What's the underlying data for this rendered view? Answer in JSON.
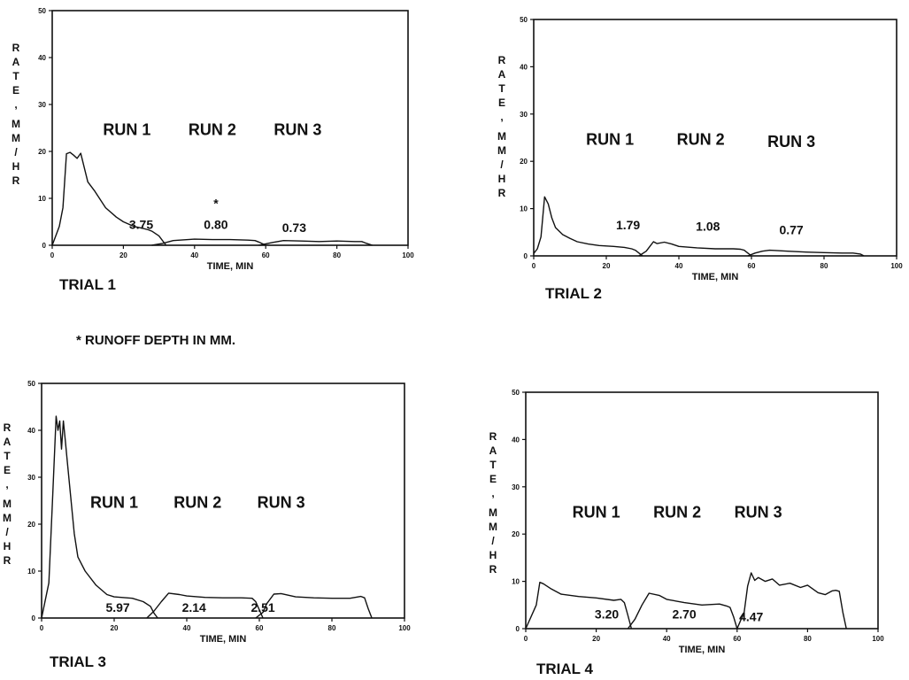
{
  "footnote": "* RUNOFF DEPTH IN MM.",
  "chart_data": [
    {
      "type": "line",
      "trial_label": "TRIAL 1",
      "xlabel": "TIME, MIN",
      "ylabel": "RATE, MM/HR",
      "ylabel_chars": [
        "R",
        "A",
        "T",
        "E",
        ",",
        "M",
        "M",
        "/",
        "H",
        "R"
      ],
      "xlim": [
        0,
        100
      ],
      "ylim": [
        0,
        50
      ],
      "xticks": [
        0,
        20,
        40,
        60,
        80,
        100
      ],
      "yticks": [
        0,
        10,
        20,
        30,
        40,
        50
      ],
      "run_labels": [
        {
          "text": "RUN 1",
          "x": 21,
          "y": 23.5
        },
        {
          "text": "RUN 2",
          "x": 45,
          "y": 23.5
        },
        {
          "text": "RUN 3",
          "x": 69,
          "y": 23.5
        }
      ],
      "depth_labels": [
        {
          "text": "3.75",
          "x": 25,
          "y": 3.5
        },
        {
          "text": "0.80",
          "x": 46,
          "y": 3.5
        },
        {
          "text": "0.73",
          "x": 68,
          "y": 2.8
        }
      ],
      "asterisk": {
        "text": "*",
        "x": 46,
        "y": 8
      },
      "series": [
        {
          "name": "Run 1",
          "x": [
            0,
            2,
            3,
            4,
            5,
            6,
            7,
            8,
            10,
            12,
            15,
            18,
            20,
            23,
            25,
            27,
            28,
            30,
            32
          ],
          "y": [
            0,
            4,
            8,
            19.5,
            19.8,
            19.2,
            18.5,
            19.6,
            13.5,
            11.5,
            8,
            6,
            5,
            4,
            3.7,
            3.3,
            3,
            2,
            0
          ]
        },
        {
          "name": "Run 2",
          "x": [
            28,
            31,
            34,
            40,
            45,
            50,
            55,
            57,
            58,
            60
          ],
          "y": [
            0,
            0.4,
            1,
            1.3,
            1.2,
            1.2,
            1.1,
            1.0,
            0.7,
            0
          ]
        },
        {
          "name": "Run 3",
          "x": [
            58,
            60,
            62,
            65,
            70,
            75,
            80,
            85,
            87,
            88,
            90
          ],
          "y": [
            0,
            0.3,
            0.6,
            1.0,
            0.9,
            0.8,
            0.9,
            0.8,
            0.8,
            0.5,
            0
          ]
        }
      ]
    },
    {
      "type": "line",
      "trial_label": "TRIAL 2",
      "xlabel": "TIME, MIN",
      "ylabel": "RATE, MM/HR",
      "ylabel_chars": [
        "R",
        "A",
        "T",
        "E",
        ",",
        "M",
        "M",
        "/",
        "H",
        "R"
      ],
      "xlim": [
        0,
        100
      ],
      "ylim": [
        0,
        50
      ],
      "xticks": [
        0,
        20,
        40,
        60,
        80,
        100
      ],
      "yticks": [
        0,
        10,
        20,
        30,
        40,
        50
      ],
      "run_labels": [
        {
          "text": "RUN 1",
          "x": 21,
          "y": 23.5
        },
        {
          "text": "RUN 2",
          "x": 46,
          "y": 23.5
        },
        {
          "text": "RUN 3",
          "x": 71,
          "y": 23
        }
      ],
      "depth_labels": [
        {
          "text": "1.79",
          "x": 26,
          "y": 5.6
        },
        {
          "text": "1.08",
          "x": 48,
          "y": 5.3
        },
        {
          "text": "0.77",
          "x": 71,
          "y": 4.6
        }
      ],
      "series": [
        {
          "name": "Run 1",
          "x": [
            0,
            1,
            2,
            3,
            4,
            5,
            6,
            8,
            10,
            12,
            15,
            18,
            20,
            22,
            25,
            27,
            28,
            29,
            30
          ],
          "y": [
            0.5,
            1.5,
            4,
            12.5,
            11,
            8,
            6,
            4.5,
            3.7,
            3,
            2.5,
            2.2,
            2.1,
            2.0,
            1.8,
            1.5,
            1.2,
            0.6,
            0
          ]
        },
        {
          "name": "Run 2",
          "x": [
            29,
            31,
            32,
            33,
            34,
            36,
            38,
            40,
            45,
            50,
            55,
            57,
            58,
            59,
            60
          ],
          "y": [
            0,
            1.0,
            2.0,
            3.0,
            2.6,
            2.9,
            2.5,
            2.0,
            1.7,
            1.5,
            1.5,
            1.4,
            1.2,
            0.6,
            0
          ]
        },
        {
          "name": "Run 3",
          "x": [
            59,
            61,
            63,
            65,
            70,
            75,
            80,
            85,
            88,
            90,
            91
          ],
          "y": [
            0,
            0.6,
            1.0,
            1.2,
            1.0,
            0.8,
            0.7,
            0.6,
            0.6,
            0.4,
            0
          ]
        }
      ]
    },
    {
      "type": "line",
      "trial_label": "TRIAL 3",
      "xlabel": "TIME, MIN",
      "ylabel": "RATE, MM/HR",
      "ylabel_chars": [
        "R",
        "A",
        "T",
        "E",
        ",",
        "M",
        "M",
        "/",
        "H",
        "R"
      ],
      "xlim": [
        0,
        100
      ],
      "ylim": [
        0,
        50
      ],
      "xticks": [
        0,
        20,
        40,
        60,
        80,
        100
      ],
      "yticks": [
        0,
        10,
        20,
        30,
        40,
        50
      ],
      "run_labels": [
        {
          "text": "RUN 1",
          "x": 20,
          "y": 23.5
        },
        {
          "text": "RUN 2",
          "x": 43,
          "y": 23.5
        },
        {
          "text": "RUN 3",
          "x": 66,
          "y": 23.5
        }
      ],
      "depth_labels": [
        {
          "text": "5.97",
          "x": 21,
          "y": 1.3
        },
        {
          "text": "2.14",
          "x": 42,
          "y": 1.3
        },
        {
          "text": "2.51",
          "x": 61,
          "y": 1.3
        }
      ],
      "series": [
        {
          "name": "Run 1",
          "x": [
            0,
            2,
            3,
            4,
            4.5,
            5,
            5.5,
            6,
            6.5,
            7,
            8,
            9,
            10,
            12,
            15,
            18,
            20,
            25,
            28,
            30,
            31,
            32
          ],
          "y": [
            0,
            7.5,
            25,
            43,
            40,
            42,
            36,
            42,
            38,
            34,
            26,
            18,
            13,
            10,
            7,
            5,
            4.5,
            4.2,
            3.5,
            2.5,
            1,
            0
          ]
        },
        {
          "name": "Run 2",
          "x": [
            29,
            31,
            33,
            35,
            38,
            40,
            45,
            50,
            55,
            58,
            59,
            61
          ],
          "y": [
            0,
            1.5,
            3.5,
            5.3,
            5.0,
            4.7,
            4.4,
            4.3,
            4.3,
            4.2,
            3.5,
            0
          ]
        },
        {
          "name": "Run 3",
          "x": [
            59,
            61,
            62,
            64,
            66,
            70,
            75,
            80,
            85,
            88,
            89,
            90,
            91
          ],
          "y": [
            0,
            1.2,
            3,
            5.1,
            5.2,
            4.5,
            4.3,
            4.2,
            4.2,
            4.6,
            4.3,
            2,
            0
          ]
        }
      ]
    },
    {
      "type": "line",
      "trial_label": "TRIAL 4",
      "xlabel": "TIME, MIN",
      "ylabel": "RATE, MM/HR",
      "ylabel_chars": [
        "R",
        "A",
        "T",
        "E",
        ",",
        "M",
        "M",
        "/",
        "H",
        "R"
      ],
      "xlim": [
        0,
        100
      ],
      "ylim": [
        0,
        50
      ],
      "xticks": [
        0,
        20,
        40,
        60,
        80,
        100
      ],
      "yticks": [
        0,
        10,
        20,
        30,
        40,
        50
      ],
      "run_labels": [
        {
          "text": "RUN 1",
          "x": 20,
          "y": 23.5
        },
        {
          "text": "RUN 2",
          "x": 43,
          "y": 23.5
        },
        {
          "text": "RUN 3",
          "x": 66,
          "y": 23.5
        }
      ],
      "depth_labels": [
        {
          "text": "3.20",
          "x": 23,
          "y": 2.2
        },
        {
          "text": "2.70",
          "x": 45,
          "y": 2.2
        },
        {
          "text": "4.47",
          "x": 64,
          "y": 1.6
        }
      ],
      "series": [
        {
          "name": "Run 1",
          "x": [
            0,
            3,
            4,
            5,
            7,
            10,
            15,
            20,
            25,
            27,
            28,
            29,
            30
          ],
          "y": [
            0,
            5,
            9.8,
            9.5,
            8.5,
            7.3,
            6.8,
            6.5,
            6.0,
            6.2,
            5.5,
            2.8,
            0
          ]
        },
        {
          "name": "Run 2",
          "x": [
            29,
            31,
            33,
            35,
            38,
            40,
            45,
            50,
            55,
            57,
            58,
            59,
            60
          ],
          "y": [
            0,
            2,
            5,
            7.5,
            7.0,
            6.2,
            5.5,
            5.0,
            5.2,
            4.8,
            4.5,
            2.5,
            0
          ]
        },
        {
          "name": "Run 3",
          "x": [
            60,
            62,
            63,
            64,
            65,
            66,
            68,
            70,
            72,
            75,
            78,
            80,
            83,
            85,
            87,
            88,
            89,
            90,
            91
          ],
          "y": [
            0,
            3.5,
            9,
            11.8,
            10.2,
            10.8,
            10.0,
            10.5,
            9.2,
            9.6,
            8.7,
            9.2,
            7.6,
            7.2,
            8.0,
            8.1,
            7.9,
            3.5,
            0
          ]
        }
      ]
    }
  ]
}
